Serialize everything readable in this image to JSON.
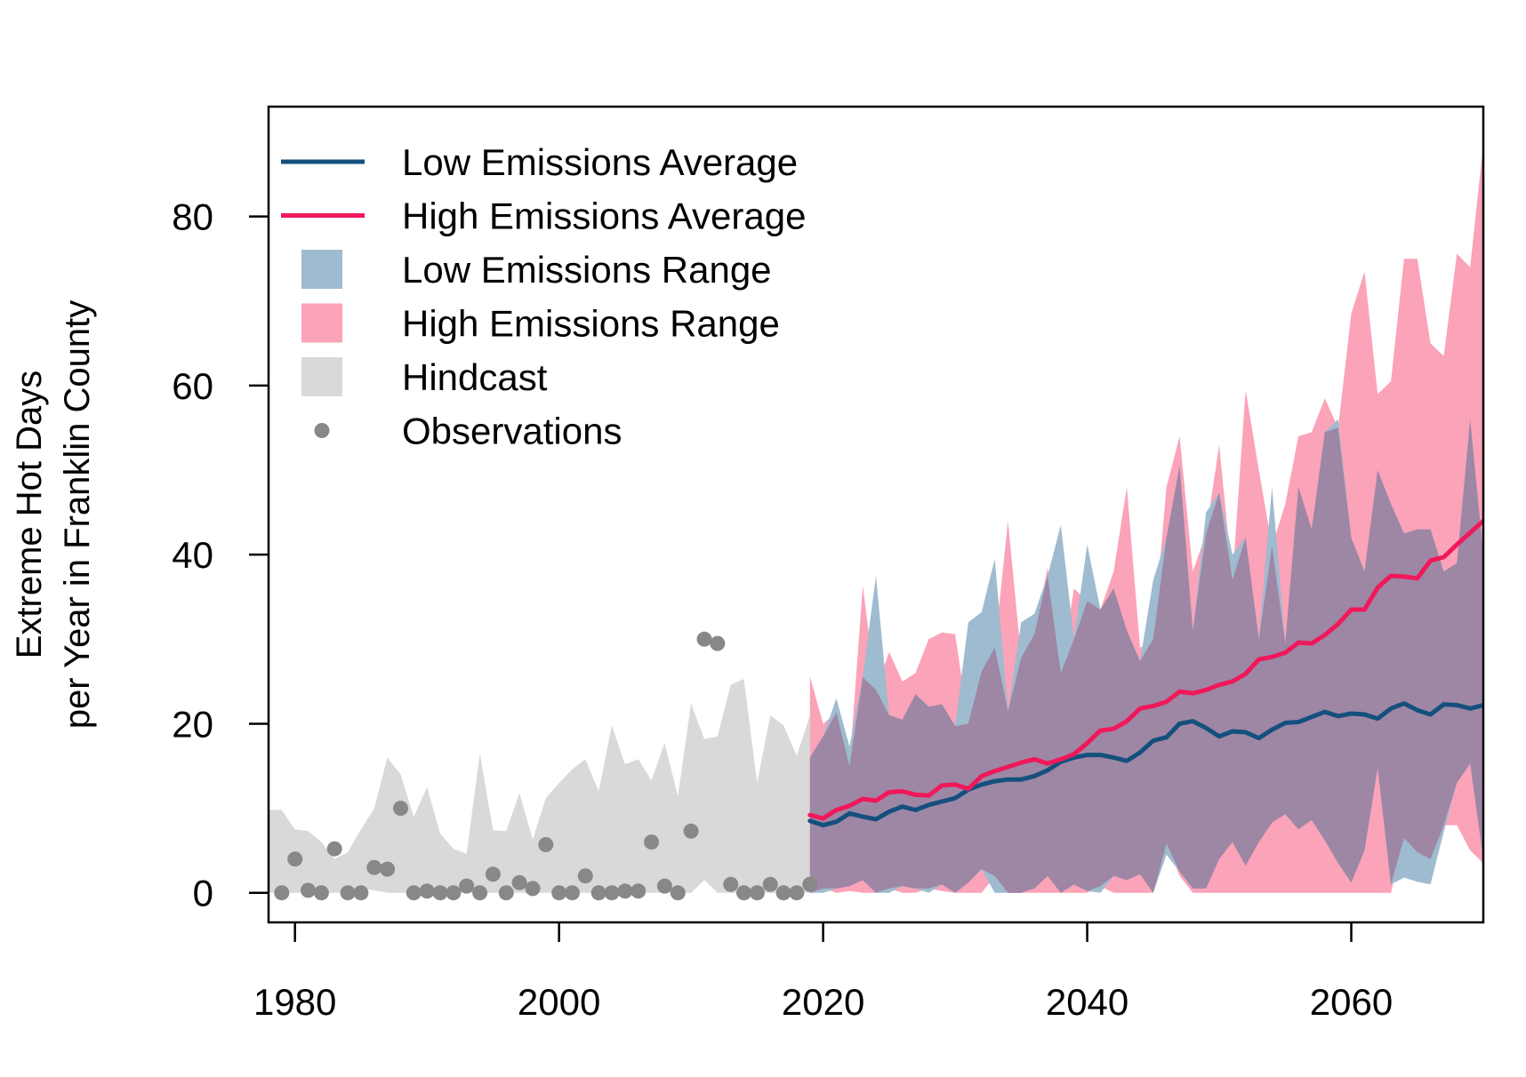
{
  "chart_data": {
    "type": "line",
    "title": "",
    "xlabel": "",
    "ylabel_lines": [
      "Extreme Hot Days",
      "per Year in Franklin County"
    ],
    "xlim": [
      1978,
      2070
    ],
    "ylim": [
      -3.5,
      93
    ],
    "xticks": [
      1980,
      2000,
      2020,
      2040,
      2060
    ],
    "yticks": [
      0,
      20,
      40,
      60,
      80
    ],
    "grid": false,
    "legend_position": "top-left",
    "colors": {
      "low_avg": "#14507d",
      "high_avg": "#f0185a",
      "low_range": "#9fbbd0",
      "high_range": "#fba3b8",
      "overlap": "#9e86a5",
      "hindcast": "#d9d9d9",
      "observations": "#888888"
    },
    "legend": [
      {
        "key": "low_avg",
        "label": "Low Emissions Average",
        "symbol": "line"
      },
      {
        "key": "high_avg",
        "label": "High Emissions Average",
        "symbol": "line"
      },
      {
        "key": "low_range",
        "label": "Low Emissions Range",
        "symbol": "box"
      },
      {
        "key": "high_range",
        "label": "High Emissions Range",
        "symbol": "box"
      },
      {
        "key": "hindcast",
        "label": "Hindcast",
        "symbol": "box"
      },
      {
        "key": "observations",
        "label": "Observations",
        "symbol": "point"
      }
    ],
    "observations": {
      "x": [
        1979,
        1980,
        1981,
        1982,
        1983,
        1984,
        1985,
        1986,
        1987,
        1988,
        1989,
        1990,
        1991,
        1992,
        1993,
        1994,
        1995,
        1996,
        1997,
        1998,
        1999,
        2000,
        2001,
        2002,
        2003,
        2004,
        2005,
        2006,
        2007,
        2008,
        2009,
        2010,
        2011,
        2012,
        2013,
        2014,
        2015,
        2016,
        2017,
        2018,
        2019
      ],
      "y": [
        0,
        4,
        0.3,
        0,
        5.2,
        0,
        0,
        3,
        2.8,
        10,
        0,
        0.2,
        0,
        0,
        0.8,
        0,
        2.2,
        0,
        1.2,
        0.5,
        5.7,
        0,
        0,
        2,
        0,
        0,
        0.2,
        0.2,
        6,
        0.8,
        0,
        7.3,
        30,
        29.5,
        1,
        0,
        0,
        1,
        0,
        0,
        1
      ]
    },
    "hindcast": {
      "x": [
        1978,
        1979,
        1980,
        1981,
        1982,
        1983,
        1984,
        1985,
        1986,
        1987,
        1988,
        1989,
        1990,
        1991,
        1992,
        1993,
        1994,
        1995,
        1996,
        1997,
        1998,
        1999,
        2000,
        2001,
        2002,
        2003,
        2004,
        2005,
        2006,
        2007,
        2008,
        2009,
        2010,
        2011,
        2012,
        2013,
        2014,
        2015,
        2016,
        2017,
        2018,
        2019
      ],
      "upper": [
        9.8,
        9.8,
        7.5,
        7.3,
        6,
        4,
        4.8,
        7.5,
        10,
        16,
        14,
        9,
        12.5,
        7,
        5.2,
        4.6,
        16.5,
        7.4,
        7.3,
        11.8,
        6.3,
        11.2,
        13,
        14.6,
        15.8,
        12,
        19.8,
        15.2,
        15.8,
        13.3,
        17.7,
        11.4,
        22.4,
        18.2,
        18.5,
        24.6,
        25.3,
        13,
        21,
        19.8,
        16.2,
        21
      ],
      "lower": [
        0,
        0,
        0,
        0,
        0,
        0,
        0,
        0.5,
        0.3,
        0,
        0,
        0,
        0,
        0,
        0,
        0,
        0,
        0,
        0,
        0,
        0,
        0,
        0,
        0,
        0,
        0,
        0,
        0,
        0,
        0,
        0,
        0,
        0,
        1.5,
        0,
        0,
        0,
        0,
        0,
        0,
        0,
        0
      ]
    },
    "projection_x": [
      2019,
      2020,
      2021,
      2022,
      2023,
      2024,
      2025,
      2026,
      2027,
      2028,
      2029,
      2030,
      2031,
      2032,
      2033,
      2034,
      2035,
      2036,
      2037,
      2038,
      2039,
      2040,
      2041,
      2042,
      2043,
      2044,
      2045,
      2046,
      2047,
      2048,
      2049,
      2050,
      2051,
      2052,
      2053,
      2054,
      2055,
      2056,
      2057,
      2058,
      2059,
      2060,
      2061,
      2062,
      2063,
      2064,
      2065,
      2066,
      2067,
      2068,
      2069,
      2070
    ],
    "series": [
      {
        "key": "low_avg",
        "name": "Low Emissions Average",
        "values": [
          8.5,
          8,
          8.4,
          9.4,
          9,
          8.7,
          9.6,
          10.2,
          9.8,
          10.4,
          10.8,
          11.2,
          12.2,
          12.8,
          13.2,
          13.4,
          13.4,
          13.8,
          14.5,
          15.5,
          16,
          16.3,
          16.3,
          16,
          15.6,
          16.6,
          18,
          18.4,
          20,
          20.3,
          19.5,
          18.5,
          19.1,
          19,
          18.3,
          19.3,
          20.1,
          20.2,
          20.8,
          21.4,
          20.9,
          21.2,
          21.1,
          20.6,
          21.8,
          22.4,
          21.6,
          21.1,
          22.3,
          22.2,
          21.8,
          22.2
        ]
      },
      {
        "key": "high_avg",
        "name": "High Emissions Average",
        "values": [
          9.2,
          8.8,
          9.8,
          10.3,
          11.1,
          10.9,
          11.9,
          12,
          11.6,
          11.5,
          12.7,
          12.8,
          12.3,
          13.8,
          14.4,
          14.9,
          15.4,
          15.8,
          15.3,
          15.8,
          16.4,
          17.7,
          19.2,
          19.4,
          20.3,
          21.8,
          22.1,
          22.6,
          23.8,
          23.6,
          24,
          24.6,
          25,
          25.9,
          27.6,
          27.9,
          28.4,
          29.6,
          29.5,
          30.5,
          31.8,
          33.5,
          33.5,
          36.1,
          37.5,
          37.4,
          37.2,
          39.3,
          39.7,
          41.2,
          42.6,
          44
        ]
      }
    ],
    "low_range": {
      "upper": [
        16,
        18.5,
        23,
        17.3,
        25.5,
        37.5,
        21,
        20.5,
        23.5,
        22,
        22.3,
        19.7,
        32,
        33.2,
        39.5,
        21.5,
        32,
        33,
        37.5,
        43.5,
        30,
        41.2,
        33.5,
        36,
        31,
        27.4,
        37,
        42,
        50.5,
        31,
        45,
        47.3,
        40,
        42,
        30,
        48,
        29.5,
        48,
        43,
        54.5,
        56,
        42,
        38,
        50,
        46,
        42.5,
        43,
        43,
        38,
        39,
        56,
        40
      ],
      "lower": [
        0,
        0,
        0.5,
        0.8,
        1.5,
        0,
        0,
        0.8,
        0.5,
        0,
        1,
        0,
        1.2,
        2.8,
        0,
        0,
        0,
        0.5,
        2,
        0,
        1,
        0.2,
        0,
        2,
        1.5,
        2.2,
        0,
        4.5,
        2.5,
        0.5,
        0.5,
        4,
        6,
        3.2,
        6,
        8.3,
        9.3,
        7.5,
        8.6,
        6.2,
        3.5,
        1.2,
        5,
        14.8,
        1,
        1.8,
        1.3,
        1,
        7.2,
        13,
        15.3,
        4
      ]
    },
    "high_range": {
      "upper": [
        25.6,
        20,
        21.3,
        15,
        36.3,
        24,
        28.5,
        25,
        26,
        30,
        30.8,
        30.6,
        20,
        26.2,
        29,
        44,
        27.8,
        30.6,
        38.5,
        26,
        36,
        34.5,
        33.5,
        38,
        48,
        29,
        30,
        48,
        54,
        38,
        42.5,
        53,
        37,
        59.5,
        50,
        41,
        46,
        54,
        54.5,
        58.5,
        55,
        68.5,
        73.5,
        59,
        60.5,
        75,
        75,
        65,
        63.5,
        75.6,
        74,
        88.6
      ],
      "lower": [
        0,
        0.5,
        0,
        0.2,
        0,
        0,
        0.5,
        0,
        0,
        0.5,
        0.2,
        0,
        0,
        0,
        2,
        0,
        0,
        0,
        0,
        0,
        0,
        0,
        0.8,
        0,
        0,
        0,
        0,
        5.8,
        2,
        0,
        0,
        0,
        0,
        0,
        0,
        0,
        0,
        0,
        0,
        0,
        0,
        0,
        0,
        0,
        0,
        6.5,
        4.8,
        4,
        8,
        8,
        5,
        3.5
      ]
    }
  }
}
